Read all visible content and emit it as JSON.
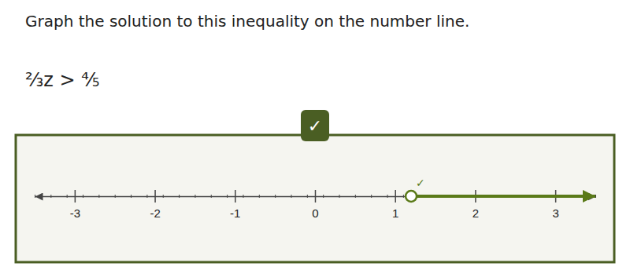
{
  "chart_data": {
    "type": "number_line",
    "title": "Graph the solution to this inequality on the number line.",
    "subtitle": "⅔z > ⅘",
    "annotations": [
      "✓",
      "✓"
    ],
    "solution_point": 1.2,
    "open_circle": true,
    "ray_direction": "right",
    "color": "#5a7a18",
    "xlim": [
      -3.5,
      3.5
    ],
    "xticks": [
      -3,
      -2,
      -1,
      0,
      1,
      2,
      3
    ],
    "minor_ticks": [
      -3.5,
      -3.3,
      -3.1,
      -2.9,
      -2.7,
      -2.5,
      -2.3,
      -2.1,
      -1.9,
      -1.7,
      -1.5,
      -1.3,
      -1.1,
      -0.9,
      -0.7,
      -0.5,
      -0.3,
      -0.1,
      0.1,
      0.3,
      0.5,
      0.7,
      0.9,
      1.1,
      1.3,
      1.5,
      1.7,
      1.9,
      2.1,
      2.3,
      2.5,
      2.7,
      2.9,
      3.1,
      3.3,
      3.5
    ],
    "grid": false
  }
}
